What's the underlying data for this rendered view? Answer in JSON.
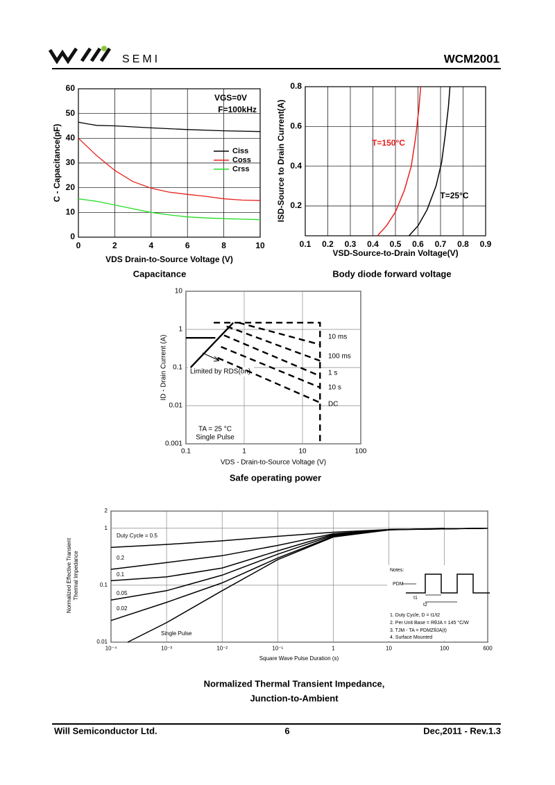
{
  "header": {
    "logo_text": "SEMI",
    "part": "WCM2001"
  },
  "footer": {
    "company": "Will Semiconductor Ltd.",
    "page": "6",
    "revision": "Dec,2011  - Rev.1.3"
  },
  "chart_data": [
    {
      "type": "line",
      "title": "Capacitance",
      "x_label": "VDS Drain-to-Source Voltage (V)",
      "y_label": "C - Capacitance(pF)",
      "annotations": [
        "VGS=0V",
        "F=100kHz"
      ],
      "xlim": [
        0,
        10
      ],
      "xticks": [
        0,
        2,
        4,
        6,
        8,
        10
      ],
      "ylim": [
        0,
        60
      ],
      "yticks": [
        0,
        10,
        20,
        30,
        40,
        50,
        60
      ],
      "grid": true,
      "legend": "right",
      "series": [
        {
          "name": "Ciss",
          "color": "#000000",
          "x": [
            0,
            0.5,
            1,
            2,
            4,
            6,
            8,
            10
          ],
          "values": [
            46.5,
            45.8,
            45.2,
            45,
            44.2,
            43.5,
            43,
            42.7
          ]
        },
        {
          "name": "Coss",
          "color": "#e8201c",
          "x": [
            0,
            1,
            2,
            3,
            4,
            5,
            6,
            7,
            8,
            9,
            10
          ],
          "values": [
            40,
            33,
            27,
            22.5,
            19.8,
            18.2,
            17.3,
            16.5,
            15.5,
            15,
            14.8
          ]
        },
        {
          "name": "Crss",
          "color": "#22dd22",
          "x": [
            0,
            1,
            2,
            3,
            4,
            5,
            6,
            7,
            8,
            9,
            10
          ],
          "values": [
            15.5,
            14.5,
            13,
            11.5,
            10,
            9,
            8.2,
            7.8,
            7.5,
            7.3,
            7.1
          ]
        }
      ]
    },
    {
      "type": "line",
      "title": "Body diode forward voltage",
      "x_label": "VSD-Source-to-Drain Voltage(V)",
      "y_label": "ISD-Source to Drain Current(A)",
      "xlim": [
        0.1,
        0.9
      ],
      "xticks": [
        0.1,
        0.2,
        0.3,
        0.4,
        0.5,
        0.6,
        0.7,
        0.8,
        0.9
      ],
      "ylim": [
        0.05,
        0.8
      ],
      "yticks": [
        0.2,
        0.4,
        0.6,
        0.8
      ],
      "grid": true,
      "series": [
        {
          "name": "T=150°C",
          "color": "#e8201c",
          "x": [
            0.42,
            0.46,
            0.5,
            0.54,
            0.57,
            0.59,
            0.605,
            0.612
          ],
          "values": [
            0.05,
            0.1,
            0.17,
            0.28,
            0.4,
            0.55,
            0.7,
            0.8
          ]
        },
        {
          "name": "T=25°C",
          "color": "#000000",
          "x": [
            0.56,
            0.6,
            0.64,
            0.68,
            0.705,
            0.72,
            0.735,
            0.742
          ],
          "values": [
            0.05,
            0.1,
            0.18,
            0.3,
            0.42,
            0.55,
            0.7,
            0.8
          ]
        }
      ]
    },
    {
      "type": "line",
      "title": "Safe operating power",
      "x_label": "VDS - Drain-to-Source Voltage (V)",
      "y_label": "ID - Drain Current (A)",
      "annotations": [
        "TA = 25 °C",
        "Single Pulse"
      ],
      "xscale": "log",
      "yscale": "log",
      "xlim": [
        0.1,
        100
      ],
      "xticks": [
        0.1,
        1,
        10,
        100
      ],
      "ylim": [
        0.001,
        10
      ],
      "yticks": [
        0.001,
        0.01,
        0.1,
        1,
        10
      ],
      "grid": true,
      "series": [
        {
          "name": "10 ms",
          "color": "#000000",
          "dash": true,
          "x": [
            0.8,
            20
          ],
          "values": [
            1.5,
            0.4
          ]
        },
        {
          "name": "100 ms",
          "color": "#000000",
          "dash": true,
          "x": [
            0.5,
            20
          ],
          "values": [
            1.2,
            0.15
          ]
        },
        {
          "name": "1 s",
          "color": "#000000",
          "dash": true,
          "x": [
            0.45,
            20
          ],
          "values": [
            0.7,
            0.06
          ]
        },
        {
          "name": "10 s",
          "color": "#000000",
          "dash": true,
          "x": [
            0.4,
            20
          ],
          "values": [
            0.35,
            0.03
          ]
        },
        {
          "name": "DC",
          "color": "#000000",
          "dash": true,
          "x": [
            0.35,
            20
          ],
          "values": [
            0.18,
            0.012
          ]
        },
        {
          "name": "Limited by RDS(on)",
          "color": "#000000",
          "x": [
            0.12,
            0.65
          ],
          "values": [
            0.1,
            1.5
          ]
        },
        {
          "color": "#000000",
          "x": [
            0.1,
            0.32
          ],
          "values": [
            0.6,
            0.6
          ]
        },
        {
          "color": "#000000",
          "dash": true,
          "x": [
            0.3,
            20,
            20
          ],
          "values": [
            1.5,
            1.5,
            0.001
          ]
        }
      ]
    },
    {
      "type": "line",
      "title": [
        "Normalized Thermal Transient Impedance,",
        "Junction-to-Ambient"
      ],
      "x_label": "Square Wave Pulse Duration (s)",
      "y_label": [
        "Normalized Effective Transient",
        "Thermal Impedance"
      ],
      "annotations": [
        "Notes:",
        "PDM",
        "t1",
        "t2",
        "1. Duty Cycle, D = t1/t2",
        "2. Per Unit Base = RθJA = 145 °C/W",
        "3. TJM - TA = PDMZθJA(t)",
        "4. Surface Mounted"
      ],
      "xscale": "log",
      "yscale": "log",
      "xlim": [
        0.0001,
        600
      ],
      "xticks": [
        {
          "value": 0.0001,
          "label": "10⁻⁴"
        },
        {
          "value": 0.001,
          "label": "10⁻³"
        },
        {
          "value": 0.01,
          "label": "10⁻²"
        },
        {
          "value": 0.1,
          "label": "10⁻¹"
        },
        1,
        10,
        100,
        600
      ],
      "ylim": [
        0.01,
        2
      ],
      "yticks": [
        0.01,
        0.1,
        1,
        2
      ],
      "grid": true,
      "series": [
        {
          "name": "Duty Cycle = 0.5",
          "color": "#000000",
          "x": [
            0.0001,
            0.001,
            0.01,
            0.1,
            1,
            10,
            600
          ],
          "values": [
            0.46,
            0.52,
            0.6,
            0.72,
            0.85,
            0.95,
            1
          ]
        },
        {
          "name": "0.2",
          "color": "#000000",
          "x": [
            0.0001,
            0.001,
            0.01,
            0.1,
            1,
            10,
            600
          ],
          "values": [
            0.19,
            0.25,
            0.33,
            0.5,
            0.8,
            0.95,
            1
          ]
        },
        {
          "name": "0.1",
          "color": "#000000",
          "x": [
            0.0001,
            0.001,
            0.01,
            0.1,
            1,
            10,
            600
          ],
          "values": [
            0.12,
            0.14,
            0.2,
            0.4,
            0.78,
            0.95,
            1
          ]
        },
        {
          "name": "0.05",
          "color": "#000000",
          "x": [
            0.0001,
            0.001,
            0.01,
            0.1,
            1,
            10,
            600
          ],
          "values": [
            0.055,
            0.08,
            0.15,
            0.35,
            0.75,
            0.94,
            1
          ]
        },
        {
          "name": "0.02",
          "color": "#000000",
          "x": [
            0.0001,
            0.001,
            0.01,
            0.1,
            1,
            10,
            600
          ],
          "values": [
            0.024,
            0.05,
            0.11,
            0.3,
            0.72,
            0.94,
            1
          ]
        },
        {
          "name": "Single Pulse",
          "color": "#000000",
          "x": [
            0.0002,
            0.001,
            0.01,
            0.1,
            1,
            10,
            100
          ],
          "values": [
            0.01,
            0.022,
            0.08,
            0.28,
            0.7,
            0.93,
            1
          ]
        }
      ]
    }
  ]
}
